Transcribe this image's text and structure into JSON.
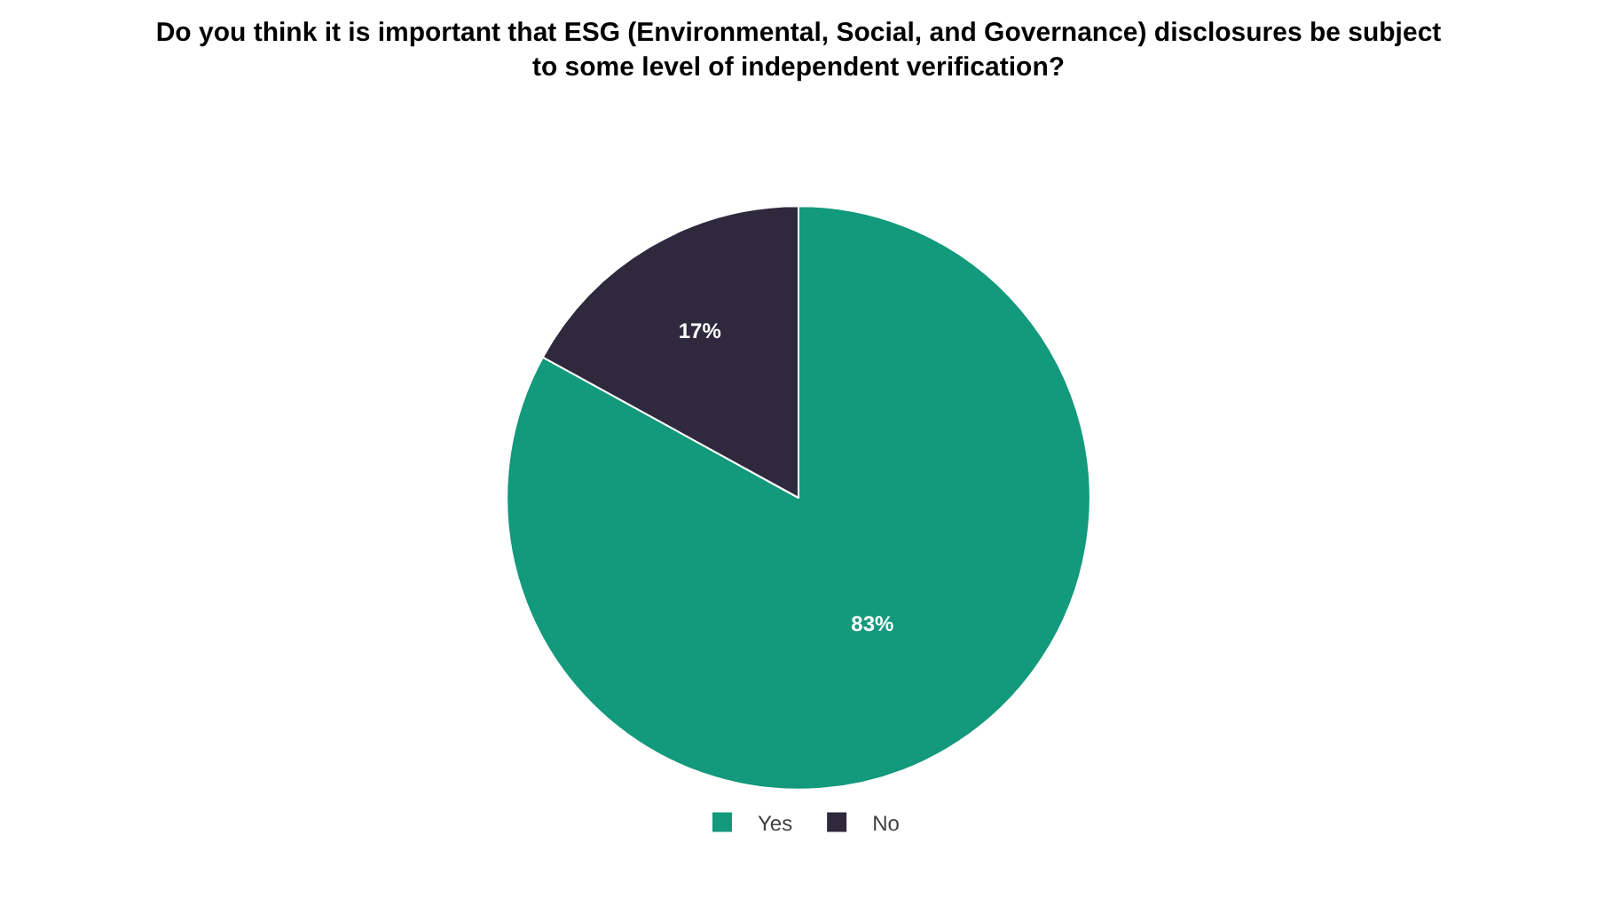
{
  "chart_data": {
    "type": "pie",
    "title": "Do you think it is important that ESG (Environmental, Social, and Governance) disclosures be subject to some level of independent verification?",
    "categories": [
      "Yes",
      "No"
    ],
    "values": [
      83,
      17
    ],
    "colors": [
      "#13997c",
      "#2e293d"
    ],
    "value_labels": [
      "83%",
      "17%"
    ],
    "legend": "bottom"
  }
}
